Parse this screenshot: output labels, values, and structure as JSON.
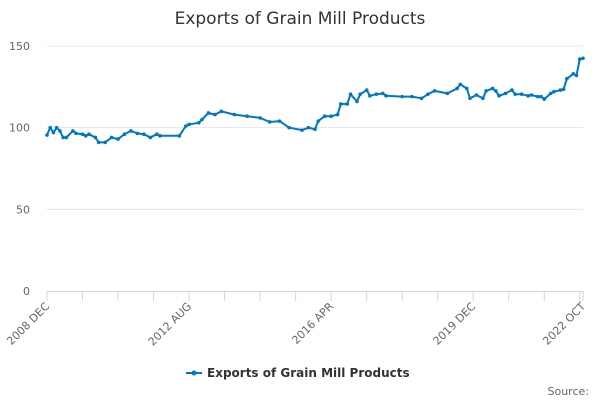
{
  "chart_data": {
    "type": "line",
    "title": "Exports of Grain Mill Products",
    "xlabel": "",
    "ylabel": "",
    "ylim": [
      0,
      150
    ],
    "yticks": [
      0,
      50,
      100,
      150
    ],
    "xlim": [
      "2008-12",
      "2022-10"
    ],
    "xtick_labels": [
      {
        "date": "2008-12",
        "label": "2008 DEC"
      },
      {
        "date": "2012-08",
        "label": "2012 AUG"
      },
      {
        "date": "2016-04",
        "label": "2016 APR"
      },
      {
        "date": "2019-12",
        "label": "2019 DEC"
      },
      {
        "date": "2022-10",
        "label": "2022 OCT"
      }
    ],
    "grid": true,
    "legend_position": "bottom",
    "color": "#0077c0",
    "series": [
      {
        "name": "Exports of Grain Mill Products",
        "x": [
          "2008-12",
          "2009-01",
          "2009-02",
          "2009-03",
          "2009-04",
          "2009-05",
          "2009-06",
          "2009-08",
          "2009-09",
          "2009-11",
          "2009-12",
          "2010-01",
          "2010-03",
          "2010-04",
          "2010-06",
          "2010-08",
          "2010-10",
          "2010-12",
          "2011-02",
          "2011-04",
          "2011-06",
          "2011-08",
          "2011-10",
          "2011-11",
          "2012-05",
          "2012-07",
          "2012-08",
          "2012-11",
          "2012-12",
          "2013-02",
          "2013-04",
          "2013-06",
          "2013-10",
          "2014-02",
          "2014-06",
          "2014-09",
          "2014-12",
          "2015-03",
          "2015-07",
          "2015-09",
          "2015-11",
          "2015-12",
          "2016-02",
          "2016-04",
          "2016-06",
          "2016-07",
          "2016-09",
          "2016-10",
          "2016-12",
          "2017-01",
          "2017-03",
          "2017-04",
          "2017-06",
          "2017-08",
          "2017-09",
          "2018-02",
          "2018-05",
          "2018-08",
          "2018-10",
          "2018-12",
          "2019-04",
          "2019-07",
          "2019-08",
          "2019-10",
          "2019-11",
          "2020-01",
          "2020-03",
          "2020-04",
          "2020-06",
          "2020-07",
          "2020-08",
          "2020-10",
          "2020-12",
          "2021-01",
          "2021-03",
          "2021-05",
          "2021-06",
          "2021-08",
          "2021-09",
          "2021-10",
          "2021-12",
          "2022-01",
          "2022-03",
          "2022-04",
          "2022-05",
          "2022-07",
          "2022-08",
          "2022-09",
          "2022-10"
        ],
        "y": [
          95.5,
          100,
          97,
          100,
          98,
          94,
          94,
          98,
          96.5,
          96,
          95,
          96,
          94,
          91,
          91,
          94,
          93,
          96,
          98,
          96.5,
          96,
          94,
          96,
          95,
          95,
          101,
          102,
          103,
          105,
          109,
          108,
          110,
          108,
          107,
          106,
          103.5,
          104,
          100,
          98.5,
          100,
          99,
          104,
          107,
          107,
          108,
          114.5,
          114.5,
          120.5,
          116,
          120.5,
          123,
          119.5,
          120.5,
          121,
          119.5,
          119,
          119,
          118,
          120.5,
          122.5,
          121,
          124,
          126.5,
          124,
          118,
          120,
          118,
          122.5,
          124,
          122.5,
          119.5,
          121,
          123,
          120.5,
          120.5,
          119.5,
          120,
          119,
          119,
          117.5,
          121,
          122,
          123,
          123.5,
          130,
          133,
          132,
          142,
          142.5
        ]
      }
    ],
    "source_label": "Source:"
  }
}
